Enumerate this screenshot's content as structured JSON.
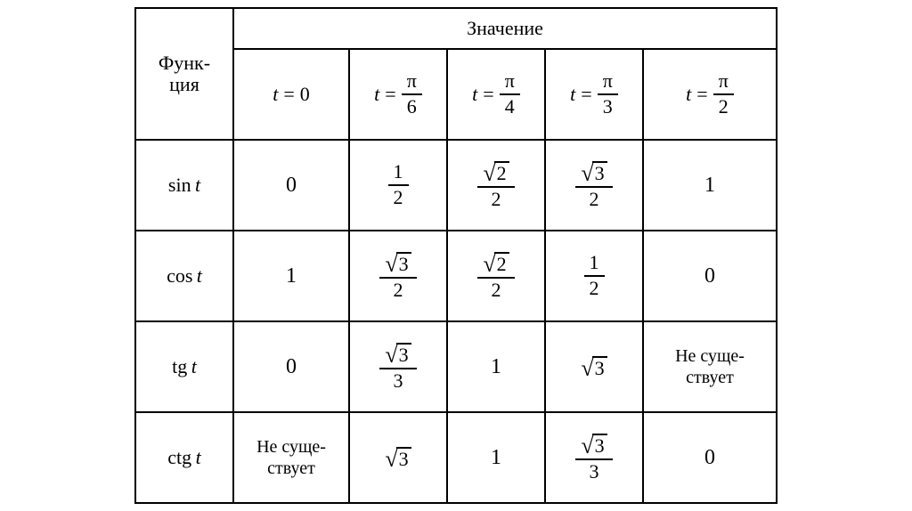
{
  "table": {
    "border_color": "#000000",
    "background_color": "#ffffff",
    "font_family": "Times New Roman",
    "header": {
      "function_label_line1": "Функ-",
      "function_label_line2": "ция",
      "values_label": "Значение",
      "t_var": "t",
      "eq": "=",
      "columns": [
        {
          "kind": "plain",
          "value": "0"
        },
        {
          "kind": "frac",
          "top": "π",
          "bot": "6"
        },
        {
          "kind": "frac",
          "top": "π",
          "bot": "4"
        },
        {
          "kind": "frac",
          "top": "π",
          "bot": "3"
        },
        {
          "kind": "frac",
          "top": "π",
          "bot": "2"
        }
      ]
    },
    "rows": [
      {
        "fn": "sin",
        "arg": "t",
        "cells": [
          {
            "kind": "plain",
            "value": "0"
          },
          {
            "kind": "frac",
            "top": "1",
            "bot": "2"
          },
          {
            "kind": "frac",
            "top_sqrt": "2",
            "bot": "2"
          },
          {
            "kind": "frac",
            "top_sqrt": "3",
            "bot": "2"
          },
          {
            "kind": "plain",
            "value": "1"
          }
        ]
      },
      {
        "fn": "cos",
        "arg": "t",
        "cells": [
          {
            "kind": "plain",
            "value": "1"
          },
          {
            "kind": "frac",
            "top_sqrt": "3",
            "bot": "2"
          },
          {
            "kind": "frac",
            "top_sqrt": "2",
            "bot": "2"
          },
          {
            "kind": "frac",
            "top": "1",
            "bot": "2"
          },
          {
            "kind": "plain",
            "value": "0"
          }
        ]
      },
      {
        "fn": "tg",
        "arg": "t",
        "cells": [
          {
            "kind": "plain",
            "value": "0"
          },
          {
            "kind": "frac",
            "top_sqrt": "3",
            "bot": "3"
          },
          {
            "kind": "plain",
            "value": "1"
          },
          {
            "kind": "sqrt",
            "arg": "3"
          },
          {
            "kind": "dne",
            "line1": "Не суще-",
            "line2": "ствует"
          }
        ]
      },
      {
        "fn": "ctg",
        "arg": "t",
        "cells": [
          {
            "kind": "dne",
            "line1": "Не суще-",
            "line2": "ствует"
          },
          {
            "kind": "sqrt",
            "arg": "3"
          },
          {
            "kind": "plain",
            "value": "1"
          },
          {
            "kind": "frac",
            "top_sqrt": "3",
            "bot": "3"
          },
          {
            "kind": "plain",
            "value": "0"
          }
        ]
      }
    ]
  }
}
